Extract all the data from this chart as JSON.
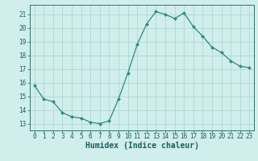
{
  "x": [
    0,
    1,
    2,
    3,
    4,
    5,
    6,
    7,
    8,
    9,
    10,
    11,
    12,
    13,
    14,
    15,
    16,
    17,
    18,
    19,
    20,
    21,
    22,
    23
  ],
  "y": [
    15.8,
    14.8,
    14.6,
    13.8,
    13.5,
    13.4,
    13.1,
    13.0,
    13.2,
    14.8,
    16.7,
    18.8,
    20.3,
    21.2,
    21.0,
    20.7,
    21.1,
    20.1,
    19.4,
    18.6,
    18.2,
    17.6,
    17.2,
    17.1
  ],
  "line_color": "#2e8b7a",
  "marker_color": "#2e8b7a",
  "bg_color": "#d0eeec",
  "grid_color": "#b0d8d4",
  "xlabel": "Humidex (Indice chaleur)",
  "ylim": [
    12.5,
    21.7
  ],
  "xlim": [
    -0.5,
    23.5
  ],
  "yticks": [
    13,
    14,
    15,
    16,
    17,
    18,
    19,
    20,
    21
  ],
  "xticks": [
    0,
    1,
    2,
    3,
    4,
    5,
    6,
    7,
    8,
    9,
    10,
    11,
    12,
    13,
    14,
    15,
    16,
    17,
    18,
    19,
    20,
    21,
    22,
    23
  ],
  "tick_label_color": "#1a5f5a",
  "label_fontsize": 7.0,
  "tick_fontsize": 5.5
}
